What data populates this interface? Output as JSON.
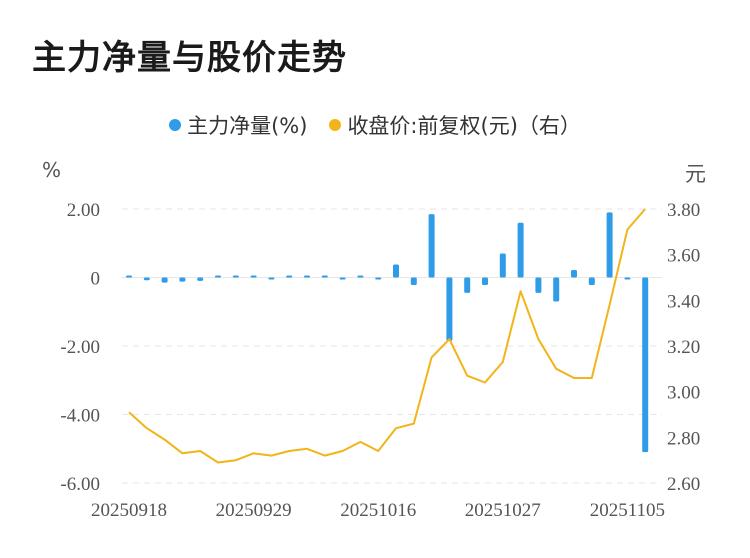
{
  "title": "主力净量与股价走势",
  "legend": {
    "left_label": "主力净量(%)",
    "right_label": "收盘价:前复权(元)（右）"
  },
  "units": {
    "left": "%",
    "right": "元"
  },
  "colors": {
    "bars": "#2f9ce8",
    "line": "#f2b418",
    "grid": "#e6e6e6"
  },
  "chart_data": {
    "type": "bar+line",
    "x_tick_labels": [
      "20250918",
      "20250929",
      "20251016",
      "20251027",
      "20251105"
    ],
    "x_tick_index": [
      0,
      7,
      14,
      21,
      28
    ],
    "left_axis": {
      "ticks": [
        "2.00",
        "0",
        "-2.00",
        "-4.00",
        "-6.00"
      ],
      "range": [
        -6,
        2
      ]
    },
    "right_axis": {
      "ticks": [
        "3.80",
        "3.60",
        "3.40",
        "3.20",
        "3.00",
        "2.80",
        "2.60"
      ],
      "range": [
        2.6,
        3.8
      ]
    },
    "series": [
      {
        "name": "主力净量(%)",
        "type": "bar",
        "axis": "left",
        "values": [
          0.05,
          -0.08,
          -0.15,
          -0.12,
          -0.1,
          0.0,
          0.02,
          0.0,
          -0.01,
          0.0,
          0.04,
          0.0,
          -0.05,
          0.05,
          -0.03,
          0.38,
          -0.22,
          1.85,
          -1.85,
          -0.45,
          -0.22,
          0.7,
          1.6,
          -0.45,
          -0.7,
          0.22,
          -0.22,
          1.9,
          -0.05,
          -5.1
        ]
      },
      {
        "name": "收盘价:前复权(元)（右）",
        "type": "line",
        "axis": "right",
        "values": [
          2.91,
          2.84,
          2.79,
          2.73,
          2.74,
          2.69,
          2.7,
          2.73,
          2.72,
          2.74,
          2.75,
          2.72,
          2.74,
          2.78,
          2.74,
          2.84,
          2.86,
          3.15,
          3.23,
          3.07,
          3.04,
          3.13,
          3.44,
          3.23,
          3.1,
          3.06,
          3.06,
          3.38,
          3.71,
          3.8
        ]
      }
    ]
  }
}
